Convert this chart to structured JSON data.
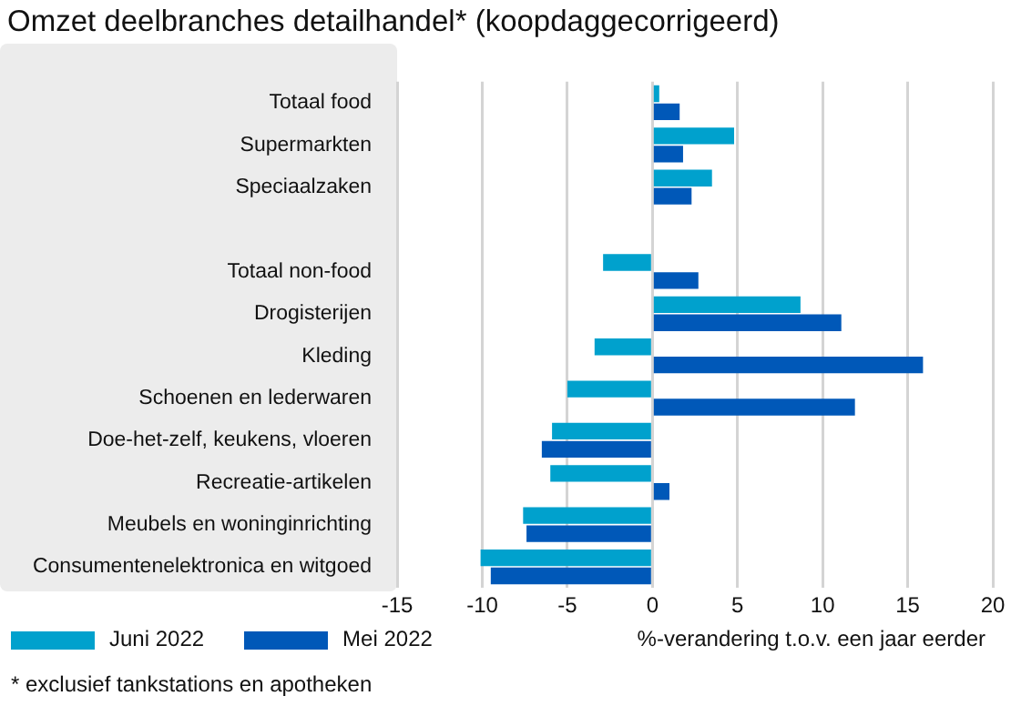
{
  "chart_data": {
    "type": "bar",
    "orientation": "horizontal",
    "title": "Omzet deelbranches detailhandel* (koopdaggecorrigeerd)",
    "xlabel": "%-verandering t.o.v. een jaar eerder",
    "categories": [
      "Totaal food",
      "Supermarkten",
      "Speciaalzaken",
      null,
      "Totaal non-food",
      "Drogisterijen",
      "Kleding",
      "Schoenen en lederwaren",
      "Doe-het-zelf, keukens, vloeren",
      "Recreatie-artikelen",
      "Meubels en woninginrichting",
      "Consumentenelektronica en witgoed"
    ],
    "series": [
      {
        "name": "Juni 2022",
        "color": "#00a1cd",
        "values": [
          0.4,
          4.8,
          3.5,
          null,
          -2.9,
          8.7,
          -3.4,
          -5.0,
          -5.9,
          -6.0,
          -7.6,
          -10.1
        ]
      },
      {
        "name": "Mei 2022",
        "color": "#0058b8",
        "values": [
          1.6,
          1.8,
          2.3,
          null,
          2.7,
          11.1,
          15.9,
          11.9,
          -6.5,
          1.0,
          -7.4,
          -9.5
        ]
      }
    ],
    "xlim": [
      -15,
      20
    ],
    "xticks": [
      -15,
      -10,
      -5,
      0,
      5,
      10,
      15,
      20
    ],
    "grid": "x",
    "legend": "bottom left",
    "annotations": [
      "* exclusief tankstations en apotheken"
    ]
  }
}
